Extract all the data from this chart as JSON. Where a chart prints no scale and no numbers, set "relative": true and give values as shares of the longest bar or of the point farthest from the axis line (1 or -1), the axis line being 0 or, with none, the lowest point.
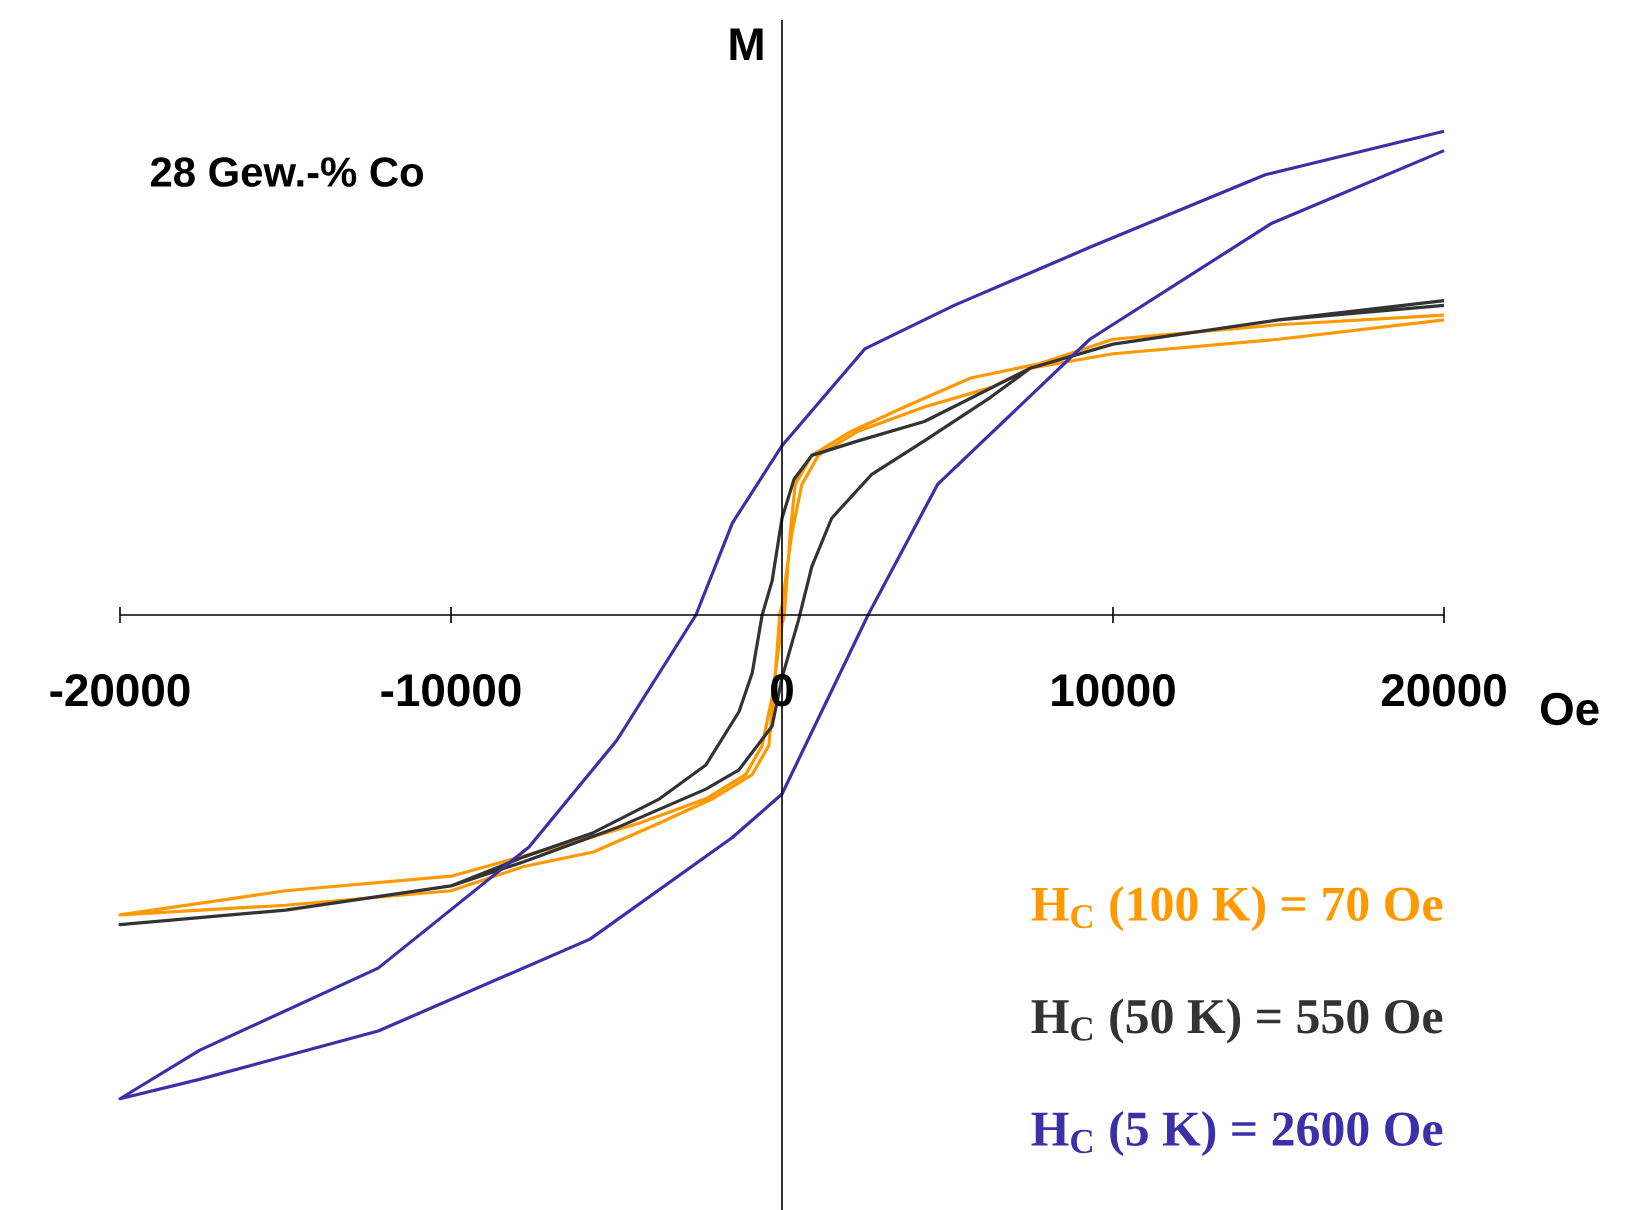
{
  "chart_data": {
    "type": "line",
    "relative": true,
    "xlabel": "Oe",
    "ylabel": "M",
    "xlim": [
      -20000,
      20000
    ],
    "xticks": [
      -20000,
      -10000,
      0,
      10000,
      20000
    ],
    "annotations": [
      "28 Gew.-% Co"
    ],
    "series": [
      {
        "name": "H$_{C}$ (100 K) = 70 Oe",
        "color": "#ff9900",
        "x": [
          20000,
          15000,
          10000,
          7500,
          6300,
          4300,
          2300,
          1100,
          600,
          300,
          0,
          -70,
          -250,
          -400,
          -900,
          -2100,
          -3700,
          -5700,
          -7800,
          -10000,
          -15000,
          -20000,
          -15000,
          -10000,
          -6300,
          -4300,
          -2300,
          -1100,
          -600,
          -300,
          0,
          70,
          250,
          400,
          900,
          2100,
          3700,
          5700,
          7800,
          10000,
          15000,
          20000
        ],
        "values": [
          0.61,
          0.57,
          0.54,
          0.51,
          0.47,
          0.43,
          0.38,
          0.33,
          0.27,
          0.17,
          0.02,
          0,
          -0.17,
          -0.27,
          -0.33,
          -0.38,
          -0.43,
          -0.49,
          -0.52,
          -0.57,
          -0.6,
          -0.62,
          -0.57,
          -0.54,
          -0.47,
          -0.43,
          -0.38,
          -0.33,
          -0.27,
          -0.17,
          -0.02,
          0,
          0.17,
          0.27,
          0.33,
          0.38,
          0.43,
          0.49,
          0.52,
          0.57,
          0.6,
          0.62
        ]
      },
      {
        "name": "H$_{C}$ (50 K) = 550 Oe",
        "color": "#333333",
        "x": [
          20000,
          15000,
          10000,
          7500,
          4300,
          2300,
          900,
          360,
          0,
          -300,
          -600,
          -900,
          -1300,
          -2300,
          -3700,
          -5700,
          -7800,
          -10000,
          -15000,
          -20000,
          -15000,
          -10000,
          -7800,
          -5000,
          -2300,
          -1300,
          -300,
          0,
          500,
          900,
          1500,
          2700,
          4300,
          6300,
          7500,
          10000,
          15000,
          20000
        ],
        "values": [
          0.64,
          0.61,
          0.56,
          0.51,
          0.4,
          0.36,
          0.33,
          0.28,
          0.2,
          0.07,
          0,
          -0.12,
          -0.2,
          -0.31,
          -0.38,
          -0.45,
          -0.5,
          -0.56,
          -0.61,
          -0.64,
          -0.61,
          -0.56,
          -0.51,
          -0.44,
          -0.36,
          -0.32,
          -0.23,
          -0.13,
          -0.01,
          0.1,
          0.2,
          0.29,
          0.36,
          0.45,
          0.51,
          0.56,
          0.61,
          0.65
        ]
      },
      {
        "name": "H$_{C}$ (5 K) = 2600 Oe",
        "color": "#3b30a8",
        "x": [
          20000,
          14600,
          9300,
          5200,
          2500,
          0,
          -1500,
          -2600,
          -5000,
          -7650,
          -12200,
          -17600,
          -20000,
          -17600,
          -12200,
          -5800,
          -1500,
          0,
          2600,
          4700,
          9300,
          14800,
          20000
        ],
        "values": [
          1.0,
          0.91,
          0.76,
          0.64,
          0.55,
          0.35,
          0.19,
          0,
          -0.26,
          -0.48,
          -0.73,
          -0.9,
          -1.0,
          -0.96,
          -0.86,
          -0.67,
          -0.46,
          -0.37,
          0,
          0.27,
          0.57,
          0.81,
          0.96
        ]
      }
    ]
  }
}
